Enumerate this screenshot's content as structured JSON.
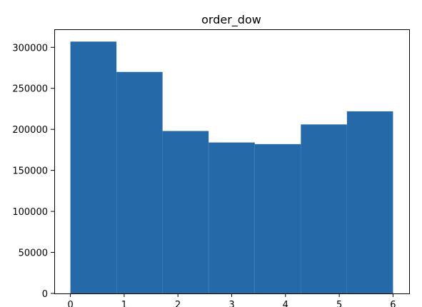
{
  "chart_data": {
    "type": "bar",
    "title": "order_dow",
    "xlabel": "",
    "ylabel": "",
    "bin_edges": [
      0,
      0.857,
      1.714,
      2.571,
      3.429,
      4.286,
      5.143,
      6
    ],
    "values": [
      307000,
      270000,
      198000,
      184000,
      182000,
      206000,
      222000
    ],
    "x_ticks": [
      0,
      1,
      2,
      3,
      4,
      5,
      6
    ],
    "x_tick_labels": [
      "0",
      "1",
      "2",
      "3",
      "4",
      "5",
      "6"
    ],
    "y_ticks": [
      0,
      50000,
      100000,
      150000,
      200000,
      250000,
      300000
    ],
    "y_tick_labels": [
      "0",
      "50000",
      "100000",
      "150000",
      "200000",
      "250000",
      "300000"
    ],
    "xlim": [
      -0.3,
      6.3
    ],
    "ylim": [
      0,
      322000
    ],
    "bar_color": "#2669a8",
    "grid": false
  }
}
